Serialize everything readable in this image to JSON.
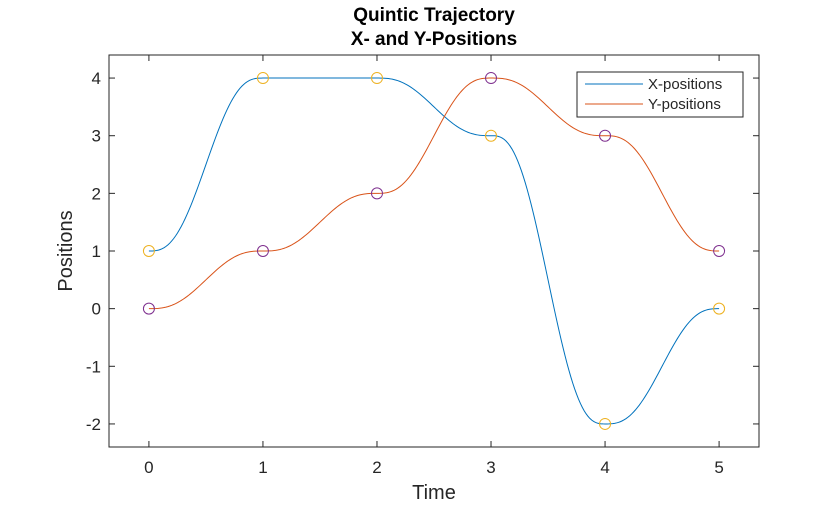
{
  "chart_data": {
    "type": "line",
    "title": [
      "Quintic Trajectory",
      "X- and Y-Positions"
    ],
    "xlabel": "Time",
    "ylabel": "Positions",
    "xlim": [
      -0.35,
      5.35
    ],
    "ylim": [
      -2.4,
      4.4
    ],
    "xticks": [
      0,
      1,
      2,
      3,
      4,
      5
    ],
    "yticks": [
      -2,
      -1,
      0,
      1,
      2,
      3,
      4
    ],
    "xtick_labels": [
      "0",
      "1",
      "2",
      "3",
      "4",
      "5"
    ],
    "ytick_labels": [
      "-2",
      "-1",
      "0",
      "1",
      "2",
      "3",
      "4"
    ],
    "grid": false,
    "legend_position": "top-right",
    "series": [
      {
        "name": "X-positions",
        "color": "#0072BD",
        "waypoint_color": "#EDB120",
        "times": [
          0,
          1,
          2,
          3,
          4,
          5
        ],
        "values": [
          1,
          4,
          4,
          3,
          -2,
          0
        ]
      },
      {
        "name": "Y-positions",
        "color": "#D95319",
        "waypoint_color": "#7E2F8E",
        "times": [
          0,
          1,
          2,
          3,
          4,
          5
        ],
        "values": [
          0,
          1,
          2,
          4,
          3,
          1
        ]
      }
    ]
  }
}
